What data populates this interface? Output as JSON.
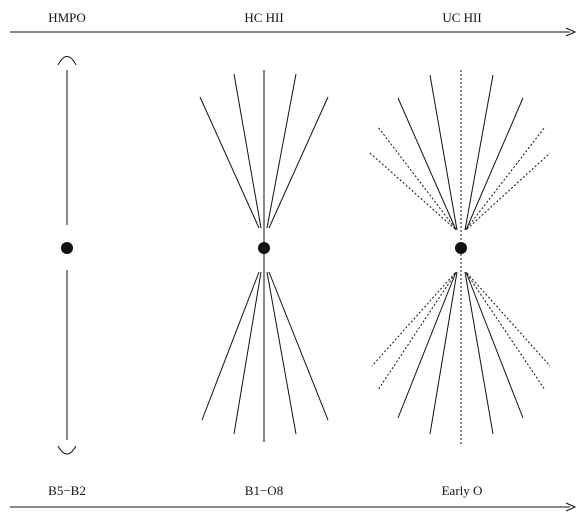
{
  "stages": [
    {
      "top_label": "HMPO",
      "bottom_label": "B5−B2",
      "star_icon": "filled-circle"
    },
    {
      "top_label": "HC HII",
      "bottom_label": "B1−O8",
      "star_icon": "filled-circle"
    },
    {
      "top_label": "UC HII",
      "bottom_label": "Early O",
      "star_icon": "filled-circle"
    }
  ],
  "colors": {
    "ink": "#111111",
    "background": "#ffffff"
  }
}
